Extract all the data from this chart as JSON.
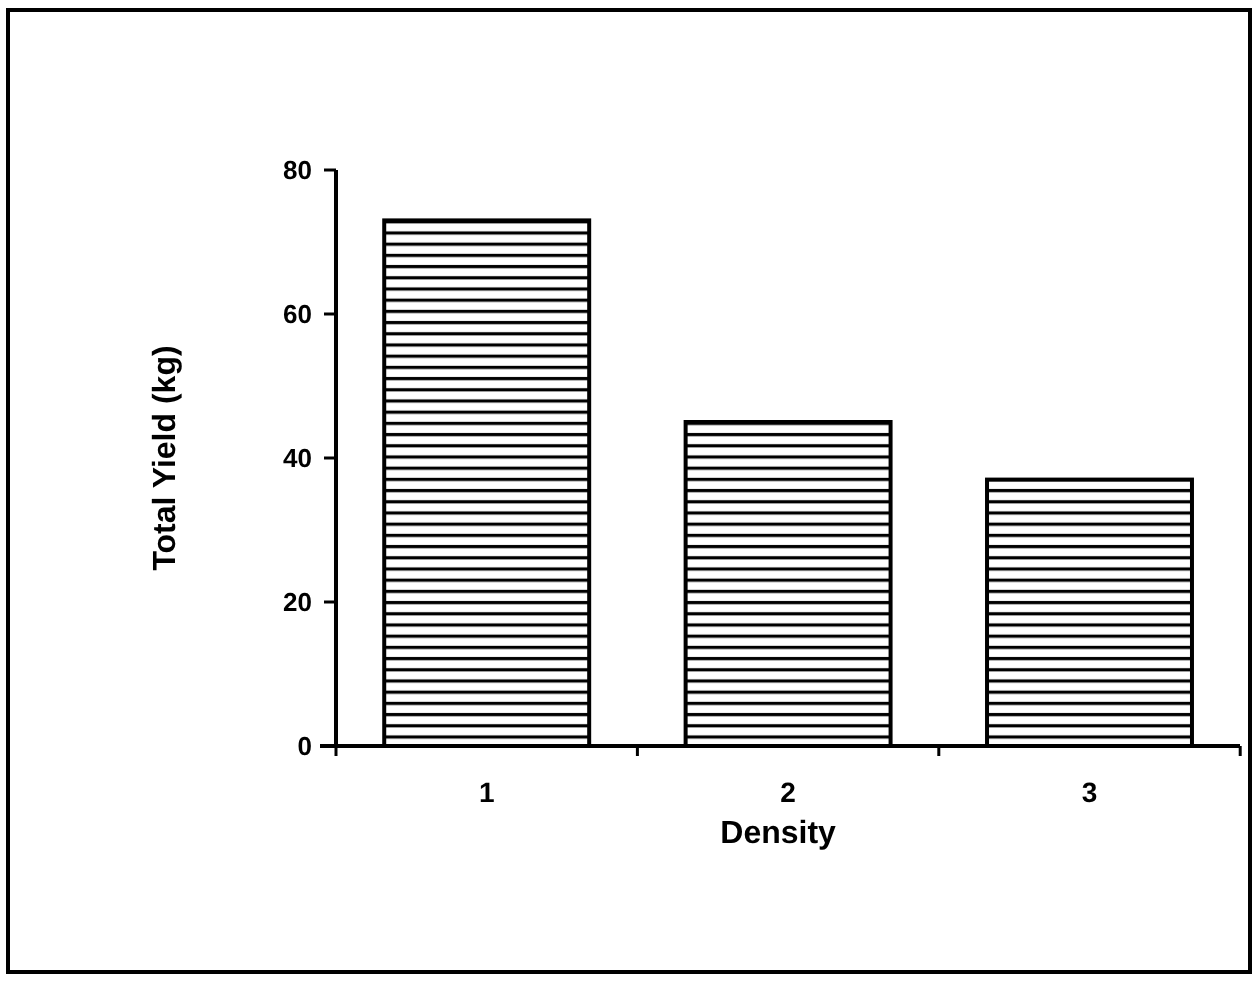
{
  "chart_data": {
    "type": "bar",
    "categories": [
      "1",
      "2",
      "3"
    ],
    "values": [
      73,
      45,
      37
    ],
    "color": "#000000",
    "xlabel": "Density",
    "ylabel": "Total Yield (kg)",
    "ylim": [
      0,
      80
    ],
    "yticks": [
      0,
      20,
      40,
      60,
      80
    ],
    "grid": false
  }
}
